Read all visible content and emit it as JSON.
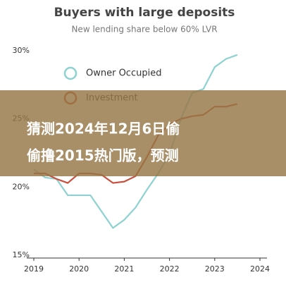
{
  "chart_data": {
    "type": "line",
    "title": "Buyers with large deposits",
    "subtitle": "New lending share below 60% LVR",
    "x": [
      2019,
      2019.25,
      2019.5,
      2019.75,
      2020,
      2020.25,
      2020.5,
      2020.75,
      2021,
      2021.25,
      2021.5,
      2021.75,
      2022,
      2022.25,
      2022.5,
      2022.75,
      2023,
      2023.25,
      2023.5
    ],
    "series": [
      {
        "name": "Owner Occupied",
        "color": "#8ed1d1",
        "values": [
          21.3,
          20.7,
          20.6,
          19.4,
          19.4,
          19.4,
          18.2,
          17.0,
          17.6,
          18.5,
          19.8,
          21.0,
          22.4,
          25.0,
          26.9,
          27.2,
          28.8,
          29.4,
          29.7
        ]
      },
      {
        "name": "Investment",
        "color": "#c8503c",
        "values": [
          21.0,
          21.0,
          20.6,
          20.3,
          21.0,
          21.0,
          20.9,
          20.3,
          20.4,
          20.8,
          22.2,
          23.8,
          24.6,
          25.0,
          25.2,
          25.3,
          25.9,
          25.9,
          26.1
        ]
      }
    ],
    "xlim": [
      2019,
      2024
    ],
    "xticks": [
      2019,
      2020,
      2021,
      2022,
      2023,
      2024
    ],
    "ylim": [
      15,
      30
    ],
    "yticks": [
      {
        "value": 15,
        "label": "15%"
      },
      {
        "value": 20,
        "label": "20%"
      },
      {
        "value": 25,
        "label": "25%"
      },
      {
        "value": 30,
        "label": "30%"
      }
    ],
    "grid": false,
    "legend": "upper left",
    "annotation": [
      "猜测2024年12月6日偷",
      "偷撸2015热门版，预测"
    ]
  }
}
